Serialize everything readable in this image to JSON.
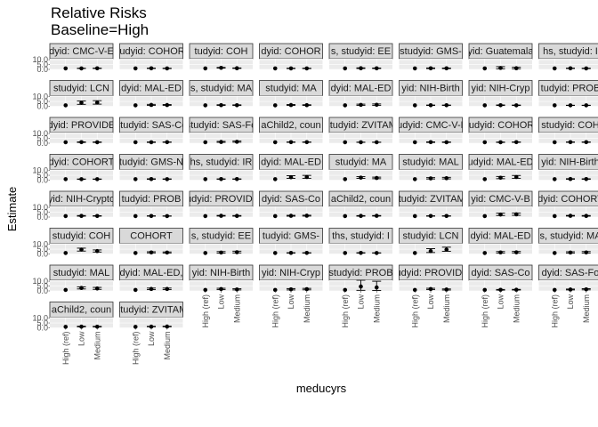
{
  "chart_data": {
    "type": "scatter",
    "title": "Relative Risks",
    "subtitle": "Baseline=High",
    "xlabel": "meducyrs",
    "ylabel": "Estimate",
    "categories": [
      "High (ref)",
      "Low",
      "Medium"
    ],
    "y_ticks": [
      "10.0",
      "5.0",
      "0.0"
    ],
    "ylim": [
      0,
      11
    ],
    "grid": true,
    "error_bars": true,
    "panels": [
      {
        "label": "dyid: CMC-V-E",
        "values": [
          1,
          1.0,
          1.1
        ],
        "lower": [
          1,
          0.9,
          0.9
        ],
        "upper": [
          1,
          1.2,
          1.3
        ]
      },
      {
        "label": "studyid: COHORT",
        "values": [
          1,
          1.1,
          1.0
        ],
        "lower": [
          1,
          0.9,
          0.8
        ],
        "upper": [
          1,
          1.3,
          1.2
        ]
      },
      {
        "label": "tudyid: COH",
        "values": [
          1,
          1.6,
          1.2
        ],
        "lower": [
          1,
          1.3,
          1.0
        ],
        "upper": [
          1,
          2.0,
          1.5
        ]
      },
      {
        "label": "dyid: COHOR",
        "values": [
          1,
          1.0,
          1.0
        ],
        "lower": [
          1,
          0.8,
          0.8
        ],
        "upper": [
          1,
          1.2,
          1.2
        ]
      },
      {
        "label": "s, studyid: EE",
        "values": [
          1,
          1.2,
          1.1
        ],
        "lower": [
          1,
          0.9,
          0.9
        ],
        "upper": [
          1,
          1.6,
          1.4
        ]
      },
      {
        "label": "studyid: GMS-",
        "values": [
          1,
          1.1,
          1.1
        ],
        "lower": [
          1,
          0.8,
          0.8
        ],
        "upper": [
          1,
          1.5,
          1.4
        ]
      },
      {
        "label": "yid: Guatemala",
        "values": [
          1,
          1.5,
          1.2
        ],
        "lower": [
          1,
          0.6,
          0.6
        ],
        "upper": [
          1,
          2.8,
          2.2
        ]
      },
      {
        "label": "hs, studyid: I",
        "values": [
          1,
          1.1,
          1.0
        ],
        "lower": [
          1,
          0.9,
          0.8
        ],
        "upper": [
          1,
          1.3,
          1.2
        ]
      },
      {
        "label": "studyid: LCN",
        "values": [
          1,
          3.5,
          3.8
        ],
        "lower": [
          1,
          2.0,
          2.2
        ],
        "upper": [
          1,
          5.5,
          5.8
        ]
      },
      {
        "label": "dyid: MAL-ED",
        "values": [
          1,
          1.4,
          1.3
        ],
        "lower": [
          1,
          1.0,
          1.0
        ],
        "upper": [
          1,
          2.0,
          1.8
        ]
      },
      {
        "label": "s, studyid: MA",
        "values": [
          1,
          1.2,
          1.1
        ],
        "lower": [
          1,
          0.9,
          0.8
        ],
        "upper": [
          1,
          1.6,
          1.5
        ]
      },
      {
        "label": "studyid: MA",
        "values": [
          1,
          1.3,
          1.2
        ],
        "lower": [
          1,
          0.9,
          0.9
        ],
        "upper": [
          1,
          1.8,
          1.6
        ]
      },
      {
        "label": "dyid: MAL-ED",
        "values": [
          1,
          1.5,
          1.6
        ],
        "lower": [
          1,
          1.0,
          1.0
        ],
        "upper": [
          1,
          2.2,
          2.4
        ]
      },
      {
        "label": "yid: NIH-Birth",
        "values": [
          1,
          1.1,
          1.1
        ],
        "lower": [
          1,
          0.9,
          0.9
        ],
        "upper": [
          1,
          1.3,
          1.3
        ]
      },
      {
        "label": "yid: NIH-Cryp",
        "values": [
          1,
          1.1,
          1.0
        ],
        "lower": [
          1,
          0.8,
          0.8
        ],
        "upper": [
          1,
          1.4,
          1.3
        ]
      },
      {
        "label": "tudyid: PROB",
        "values": [
          1,
          1.0,
          1.0
        ],
        "lower": [
          1,
          0.9,
          0.9
        ],
        "upper": [
          1,
          1.1,
          1.1
        ]
      },
      {
        "label": "dyid: PROVIDE",
        "values": [
          1,
          1.1,
          1.0
        ],
        "lower": [
          1,
          0.8,
          0.8
        ],
        "upper": [
          1,
          1.4,
          1.3
        ]
      },
      {
        "label": "studyid: SAS-Co",
        "values": [
          1,
          1.0,
          1.1
        ],
        "lower": [
          1,
          0.8,
          0.9
        ],
        "upper": [
          1,
          1.3,
          1.3
        ]
      },
      {
        "label": "studyid: SAS-Fo",
        "values": [
          1,
          1.3,
          1.5
        ],
        "lower": [
          1,
          0.9,
          1.0
        ],
        "upper": [
          1,
          1.9,
          2.3
        ]
      },
      {
        "label": "aChild2, coun",
        "values": [
          1,
          1.1,
          1.1
        ],
        "lower": [
          1,
          0.9,
          0.9
        ],
        "upper": [
          1,
          1.3,
          1.3
        ]
      },
      {
        "label": "studyid: ZVITAM",
        "values": [
          1,
          1.0,
          1.0
        ],
        "lower": [
          1,
          0.9,
          0.9
        ],
        "upper": [
          1,
          1.1,
          1.1
        ]
      },
      {
        "label": "tudyid: CMC-V-B",
        "values": [
          1,
          1.1,
          1.0
        ],
        "lower": [
          1,
          0.8,
          0.8
        ],
        "upper": [
          1,
          1.4,
          1.3
        ]
      },
      {
        "label": "studyid: COHORT",
        "values": [
          1,
          1.0,
          1.1
        ],
        "lower": [
          1,
          0.8,
          0.9
        ],
        "upper": [
          1,
          1.2,
          1.3
        ]
      },
      {
        "label": "studyid: COH",
        "values": [
          1,
          1.1,
          1.1
        ],
        "lower": [
          1,
          0.9,
          0.9
        ],
        "upper": [
          1,
          1.3,
          1.3
        ]
      },
      {
        "label": "dyid: COHORT",
        "values": [
          1,
          1.0,
          1.0
        ],
        "lower": [
          1,
          0.8,
          0.8
        ],
        "upper": [
          1,
          1.2,
          1.2
        ]
      },
      {
        "label": "tudyid: GMS-N",
        "values": [
          1,
          1.1,
          1.0
        ],
        "lower": [
          1,
          0.8,
          0.8
        ],
        "upper": [
          1,
          1.4,
          1.3
        ]
      },
      {
        "label": "hs, studyid: IR",
        "values": [
          1,
          1.1,
          1.1
        ],
        "lower": [
          1,
          0.9,
          0.9
        ],
        "upper": [
          1,
          1.3,
          1.3
        ]
      },
      {
        "label": "dyid: MAL-ED",
        "values": [
          1,
          3.0,
          3.2
        ],
        "lower": [
          1,
          1.8,
          1.9
        ],
        "upper": [
          1,
          4.6,
          4.9
        ]
      },
      {
        "label": "studyid: MA",
        "values": [
          1,
          2.6,
          2.2
        ],
        "lower": [
          1,
          1.8,
          1.5
        ],
        "upper": [
          1,
          3.6,
          3.1
        ]
      },
      {
        "label": "studyid: MAL",
        "values": [
          1,
          1.8,
          2.0
        ],
        "lower": [
          1,
          1.2,
          1.3
        ],
        "upper": [
          1,
          2.6,
          2.9
        ]
      },
      {
        "label": "tudyid: MAL-ED,",
        "values": [
          1,
          2.5,
          3.2
        ],
        "lower": [
          1,
          1.5,
          1.9
        ],
        "upper": [
          1,
          3.8,
          4.8
        ]
      },
      {
        "label": "yid: NIH-Birth",
        "values": [
          1,
          1.2,
          1.1
        ],
        "lower": [
          1,
          0.9,
          0.9
        ],
        "upper": [
          1,
          1.5,
          1.4
        ]
      },
      {
        "label": "yid: NIH-Crypto",
        "values": [
          1,
          1.2,
          1.1
        ],
        "lower": [
          1,
          0.9,
          0.9
        ],
        "upper": [
          1,
          1.6,
          1.4
        ]
      },
      {
        "label": "tudyid: PROB",
        "values": [
          1,
          1.1,
          1.0
        ],
        "lower": [
          1,
          0.9,
          0.9
        ],
        "upper": [
          1,
          1.3,
          1.2
        ]
      },
      {
        "label": "tudyid: PROVIDE",
        "values": [
          1,
          1.3,
          1.2
        ],
        "lower": [
          1,
          1.0,
          0.9
        ],
        "upper": [
          1,
          1.7,
          1.6
        ]
      },
      {
        "label": "dyid: SAS-Co",
        "values": [
          1,
          1.3,
          1.4
        ],
        "lower": [
          1,
          0.9,
          1.0
        ],
        "upper": [
          1,
          1.8,
          1.9
        ]
      },
      {
        "label": "aChild2, coun",
        "values": [
          1,
          1.2,
          1.3
        ],
        "lower": [
          1,
          0.9,
          1.0
        ],
        "upper": [
          1,
          1.5,
          1.6
        ]
      },
      {
        "label": "studyid: ZVITAMI",
        "values": [
          1,
          1.1,
          1.1
        ],
        "lower": [
          1,
          0.9,
          0.9
        ],
        "upper": [
          1,
          1.3,
          1.3
        ]
      },
      {
        "label": "yid: CMC-V-B",
        "values": [
          1,
          2.6,
          2.8
        ],
        "lower": [
          1,
          1.6,
          1.8
        ],
        "upper": [
          1,
          4.0,
          4.2
        ]
      },
      {
        "label": "dyid: COHORT",
        "values": [
          1,
          1.3,
          1.2
        ],
        "lower": [
          1,
          1.0,
          0.9
        ],
        "upper": [
          1,
          1.7,
          1.6
        ]
      },
      {
        "label": "studyid: COH",
        "values": [
          1,
          4.5,
          3.0
        ],
        "lower": [
          1,
          3.0,
          2.0
        ],
        "upper": [
          1,
          6.0,
          4.2
        ]
      },
      {
        "label": "COHORT",
        "values": [
          1,
          1.6,
          1.5
        ],
        "lower": [
          1,
          1.1,
          1.0
        ],
        "upper": [
          1,
          2.3,
          2.1
        ]
      },
      {
        "label": "s, studyid: EE",
        "values": [
          1,
          1.5,
          1.8
        ],
        "lower": [
          1,
          0.9,
          1.1
        ],
        "upper": [
          1,
          2.5,
          2.9
        ]
      },
      {
        "label": "tudyid: GMS-",
        "values": [
          1,
          1.1,
          1.1
        ],
        "lower": [
          1,
          0.9,
          0.9
        ],
        "upper": [
          1,
          1.3,
          1.3
        ]
      },
      {
        "label": "ths, studyid: I",
        "values": [
          1,
          1.1,
          1.0
        ],
        "lower": [
          1,
          0.9,
          0.9
        ],
        "upper": [
          1,
          1.3,
          1.2
        ]
      },
      {
        "label": "studyid: LCN",
        "values": [
          1,
          3.0,
          4.5
        ],
        "lower": [
          1,
          1.5,
          2.8
        ],
        "upper": [
          1,
          5.5,
          7.0
        ]
      },
      {
        "label": "dyid: MAL-ED",
        "values": [
          1,
          1.6,
          1.7
        ],
        "lower": [
          1,
          1.0,
          1.1
        ],
        "upper": [
          1,
          2.5,
          2.6
        ]
      },
      {
        "label": "s, studyid: MA",
        "values": [
          1,
          1.5,
          1.6
        ],
        "lower": [
          1,
          0.9,
          1.0
        ],
        "upper": [
          1,
          2.3,
          2.5
        ]
      },
      {
        "label": "studyid: MAL",
        "values": [
          1,
          3.0,
          2.5
        ],
        "lower": [
          1,
          2.0,
          1.6
        ],
        "upper": [
          1,
          4.2,
          3.6
        ]
      },
      {
        "label": "dyid: MAL-ED,",
        "values": [
          1,
          2.0,
          2.0
        ],
        "lower": [
          1,
          1.3,
          1.3
        ],
        "upper": [
          1,
          2.9,
          2.9
        ]
      },
      {
        "label": "yid: NIH-Birth",
        "values": [
          1,
          1.9,
          1.5
        ],
        "lower": [
          1,
          1.3,
          1.0
        ],
        "upper": [
          1,
          2.7,
          2.2
        ]
      },
      {
        "label": "yid: NIH-Cryp",
        "values": [
          1,
          1.6,
          1.8
        ],
        "lower": [
          1,
          1.0,
          1.1
        ],
        "upper": [
          1,
          2.4,
          2.6
        ]
      },
      {
        "label": "studyid: PROB",
        "values": [
          1,
          4.5,
          3.5
        ],
        "lower": [
          1,
          0.6,
          0.5
        ],
        "upper": [
          1,
          11.0,
          10.0
        ]
      },
      {
        "label": "tudyid: PROVIDE",
        "values": [
          1,
          1.9,
          1.4
        ],
        "lower": [
          1,
          1.3,
          0.9
        ],
        "upper": [
          1,
          2.7,
          2.0
        ]
      },
      {
        "label": "dyid: SAS-Co",
        "values": [
          1,
          1.1,
          1.2
        ],
        "lower": [
          1,
          0.8,
          0.9
        ],
        "upper": [
          1,
          1.5,
          1.6
        ]
      },
      {
        "label": "dyid: SAS-Fo",
        "values": [
          1,
          1.4,
          1.6
        ],
        "lower": [
          1,
          1.0,
          1.1
        ],
        "upper": [
          1,
          1.9,
          2.3
        ]
      },
      {
        "label": "aChild2, coun",
        "values": [
          1,
          1.2,
          1.1
        ],
        "lower": [
          1,
          0.9,
          0.8
        ],
        "upper": [
          1,
          1.6,
          1.5
        ]
      },
      {
        "label": "studyid: ZVITAM",
        "values": [
          1,
          1.2,
          1.3
        ],
        "lower": [
          1,
          1.0,
          1.0
        ],
        "upper": [
          1,
          1.5,
          1.6
        ]
      }
    ]
  },
  "colors": {
    "panel_bg": "#ebebeb",
    "strip_bg": "#d9d9d9",
    "strip_border": "#333333",
    "grid": "#ffffff",
    "point": "#000000",
    "tick_text": "#4d4d4d"
  }
}
